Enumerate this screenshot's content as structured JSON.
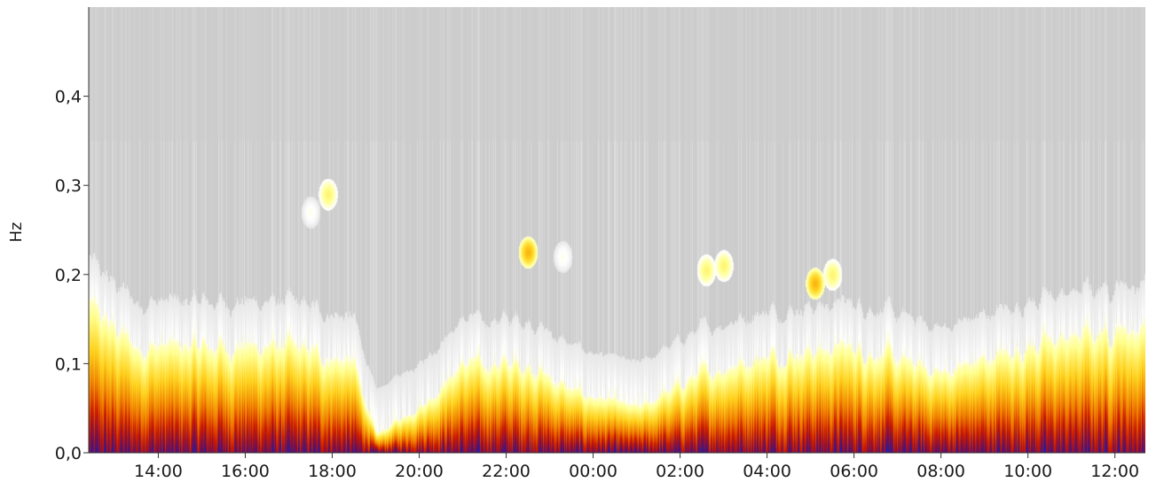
{
  "chart_data": {
    "type": "heatmap",
    "title": "",
    "xlabel": "",
    "ylabel": "Hz",
    "ylim": [
      0.0,
      0.5
    ],
    "y_ticks": [
      "0,0",
      "0,1",
      "0,2",
      "0,3",
      "0,4"
    ],
    "y_tick_values": [
      0.0,
      0.1,
      0.2,
      0.3,
      0.4
    ],
    "x_ticks": [
      "14:00",
      "16:00",
      "18:00",
      "20:00",
      "22:00",
      "00:00",
      "02:00",
      "04:00",
      "06:00",
      "08:00",
      "10:00",
      "12:00"
    ],
    "x_tick_hours": [
      14,
      16,
      18,
      20,
      22,
      24,
      26,
      28,
      30,
      32,
      34,
      36
    ],
    "xlim_hours": [
      12.4,
      36.7
    ],
    "x_axis_format": "clock hours (HH:00), crossing midnight",
    "colors": {
      "background": "#c4c4c4",
      "low": "#c4c4c4",
      "mid_low": "#ffffff",
      "mid": "#ffff80",
      "mid_high": "#f5b800",
      "high": "#cc2200",
      "very_high": "#6a0f5a",
      "max": "#2222cc"
    },
    "colormap_stops": [
      [
        0.0,
        "#c4c4c4"
      ],
      [
        0.22,
        "#e8e8e8"
      ],
      [
        0.32,
        "#ffffff"
      ],
      [
        0.45,
        "#ffff90"
      ],
      [
        0.58,
        "#ffd21e"
      ],
      [
        0.7,
        "#f08000"
      ],
      [
        0.8,
        "#cc1a00"
      ],
      [
        0.88,
        "#7a0f4a"
      ],
      [
        0.95,
        "#2a1a9a"
      ],
      [
        1.0,
        "#1c2ad6"
      ]
    ],
    "low_frequency_band_top_hz": [
      {
        "hour": 12.5,
        "hz": 0.16
      },
      {
        "hour": 13.5,
        "hz": 0.12
      },
      {
        "hour": 15.0,
        "hz": 0.12
      },
      {
        "hour": 17.0,
        "hz": 0.12
      },
      {
        "hour": 18.5,
        "hz": 0.1
      },
      {
        "hour": 19.0,
        "hz": 0.02
      },
      {
        "hour": 20.2,
        "hz": 0.06
      },
      {
        "hour": 21.0,
        "hz": 0.1
      },
      {
        "hour": 22.5,
        "hz": 0.1
      },
      {
        "hour": 23.5,
        "hz": 0.07
      },
      {
        "hour": 25.0,
        "hz": 0.05
      },
      {
        "hour": 26.5,
        "hz": 0.09
      },
      {
        "hour": 28.0,
        "hz": 0.11
      },
      {
        "hour": 30.0,
        "hz": 0.12
      },
      {
        "hour": 32.0,
        "hz": 0.09
      },
      {
        "hour": 34.0,
        "hz": 0.12
      },
      {
        "hour": 36.0,
        "hz": 0.14
      }
    ],
    "hotspots": [
      {
        "hour": 17.9,
        "hz": 0.29,
        "level": "mid"
      },
      {
        "hour": 17.5,
        "hz": 0.27,
        "level": "mid_low"
      },
      {
        "hour": 22.5,
        "hz": 0.225,
        "level": "mid_high"
      },
      {
        "hour": 23.3,
        "hz": 0.22,
        "level": "mid_low"
      },
      {
        "hour": 26.6,
        "hz": 0.205,
        "level": "mid"
      },
      {
        "hour": 27.0,
        "hz": 0.21,
        "level": "mid"
      },
      {
        "hour": 29.1,
        "hz": 0.19,
        "level": "mid_high"
      },
      {
        "hour": 29.5,
        "hz": 0.2,
        "level": "mid"
      }
    ]
  }
}
